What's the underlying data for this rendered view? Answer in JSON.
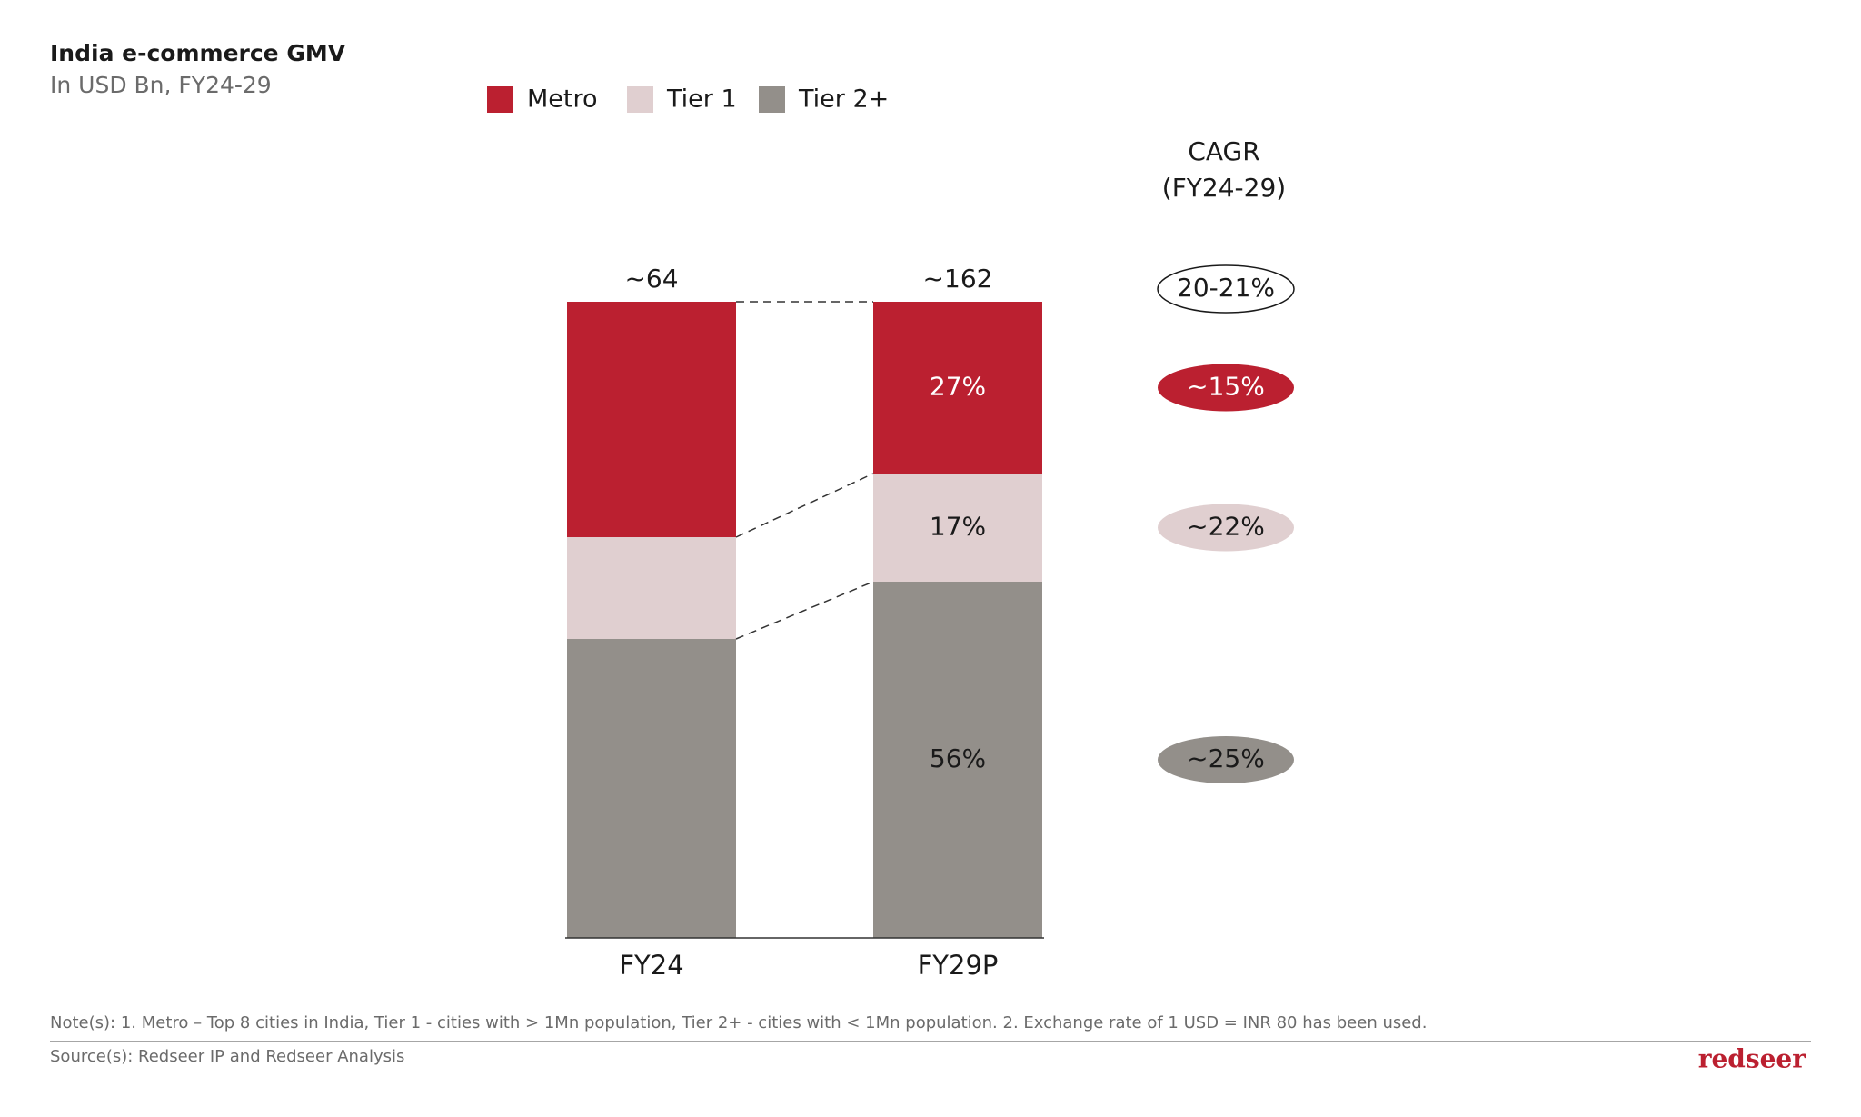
{
  "chart_data": {
    "type": "stacked-bar",
    "title": "India e-commerce GMV",
    "subtitle": "In USD Bn, FY24-29",
    "categories": [
      "FY24",
      "FY29P"
    ],
    "total_labels": [
      "~64",
      "~162"
    ],
    "series": [
      {
        "name": "Metro",
        "color": "#bb2030",
        "values": [
          37,
          27
        ],
        "value_labels": [
          null,
          "27%"
        ]
      },
      {
        "name": "Tier 1",
        "color": "#e0cfd0",
        "values": [
          16,
          17
        ],
        "value_labels": [
          null,
          "17%"
        ]
      },
      {
        "name": "Tier 2+",
        "color": "#938f8a",
        "values": [
          47,
          56
        ],
        "value_labels": [
          null,
          "56%"
        ]
      }
    ],
    "ylim": [
      0,
      100
    ],
    "cagr": {
      "title": [
        "CAGR",
        "(FY24-29)"
      ],
      "total": "20-21%",
      "series": [
        "~15%",
        "~22%",
        "~25%"
      ]
    },
    "note": "Note(s): 1. Metro – Top 8 cities in India, Tier 1 - cities with > 1Mn population, Tier 2+ - cities with < 1Mn population. 2. Exchange rate of 1 USD = INR 80 has been used.",
    "source": "Source(s): Redseer IP and Redseer Analysis",
    "logo": "redseer"
  }
}
